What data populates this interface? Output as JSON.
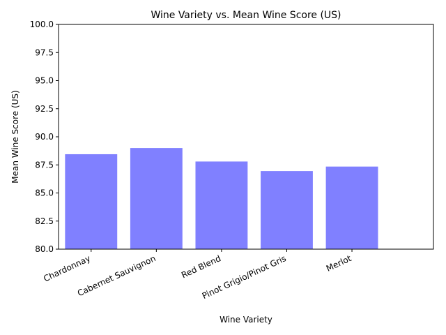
{
  "chart_data": {
    "type": "bar",
    "title": "Wine Variety vs. Mean Wine Score (US)",
    "xlabel": "Wine Variety",
    "ylabel": "Mean Wine Score (US)",
    "categories": [
      "Chardonnay",
      "Cabernet Sauvignon",
      "Red Blend",
      "Pinot Grigio/Pinot Gris",
      "Merlot"
    ],
    "values": [
      88.45,
      89.0,
      87.8,
      86.95,
      87.35
    ],
    "ylim": [
      80,
      100
    ],
    "xlim": [
      -0.5,
      5.25
    ],
    "yticks": [
      "80.0",
      "82.5",
      "85.0",
      "87.5",
      "90.0",
      "92.5",
      "95.0",
      "97.5",
      "100.0"
    ],
    "ytick_values": [
      80,
      82.5,
      85,
      87.5,
      90,
      92.5,
      95,
      97.5,
      100
    ],
    "bar_color": "#8080ff",
    "grid": false,
    "legend": "none",
    "x_tick_rotation_deg": -25
  }
}
